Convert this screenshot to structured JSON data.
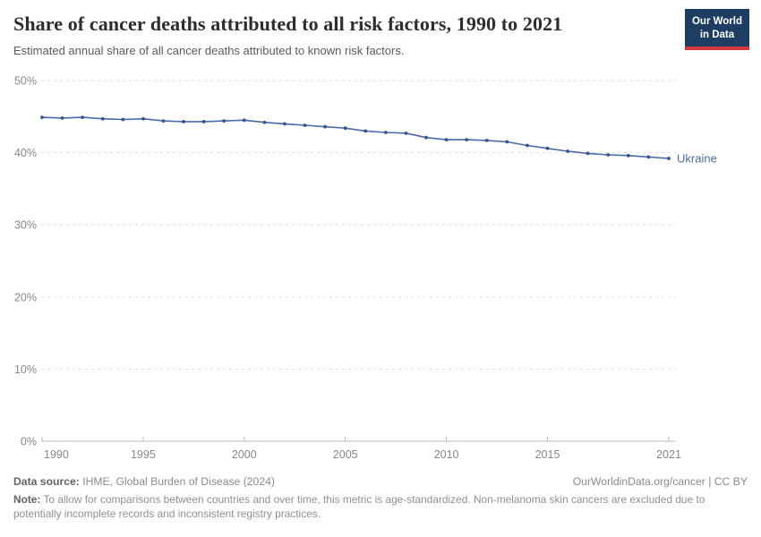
{
  "header": {
    "title": "Share of cancer deaths attributed to all risk factors, 1990 to 2021",
    "subtitle": "Estimated annual share of all cancer deaths attributed to known risk factors.",
    "logo": {
      "line1": "Our World",
      "line2": "in Data"
    }
  },
  "chart_data": {
    "type": "line",
    "title": "Share of cancer deaths attributed to all risk factors, 1990 to 2021",
    "xlabel": "",
    "ylabel": "",
    "x": [
      1990,
      1991,
      1992,
      1993,
      1994,
      1995,
      1996,
      1997,
      1998,
      1999,
      2000,
      2001,
      2002,
      2003,
      2004,
      2005,
      2006,
      2007,
      2008,
      2009,
      2010,
      2011,
      2012,
      2013,
      2014,
      2015,
      2016,
      2017,
      2018,
      2019,
      2020,
      2021
    ],
    "series": [
      {
        "name": "Ukraine",
        "values": [
          44.9,
          44.8,
          44.9,
          44.7,
          44.6,
          44.7,
          44.4,
          44.3,
          44.3,
          44.4,
          44.5,
          44.2,
          44.0,
          43.8,
          43.6,
          43.4,
          43.0,
          42.8,
          42.7,
          42.1,
          41.8,
          41.8,
          41.7,
          41.5,
          41.0,
          40.6,
          40.2,
          39.9,
          39.7,
          39.6,
          39.4,
          39.2
        ]
      }
    ],
    "ylim": [
      0,
      50
    ],
    "xlim": [
      1990,
      2021
    ],
    "y_ticks": [
      {
        "value": 0,
        "label": "0%"
      },
      {
        "value": 10,
        "label": "10%"
      },
      {
        "value": 20,
        "label": "20%"
      },
      {
        "value": 30,
        "label": "30%"
      },
      {
        "value": 40,
        "label": "40%"
      },
      {
        "value": 50,
        "label": "50%"
      }
    ],
    "x_ticks": [
      1990,
      1995,
      2000,
      2005,
      2010,
      2015,
      2021
    ],
    "grid": "horizontal-dashed",
    "legend_position": "end-of-line-label",
    "markers": true
  },
  "footer": {
    "datasource_label": "Data source:",
    "datasource_text": " IHME, Global Burden of Disease (2024)",
    "rights": "OurWorldinData.org/cancer | CC BY",
    "note_label": "Note:",
    "note_text": " To allow for comparisons between countries and over time, this metric is age-standardized. Non-melanoma skin cancers are excluded due to potentially incomplete records and inconsistent registry practices."
  },
  "colors": {
    "line": "#4a69a8",
    "marker": "#35548f",
    "series_label": "#4c6a9c",
    "grid": "#dcdcdc",
    "axis": "#b9b9b9",
    "tick_label": "#878787",
    "logo_navy": "#1d3d63",
    "logo_red": "#d6383f"
  }
}
